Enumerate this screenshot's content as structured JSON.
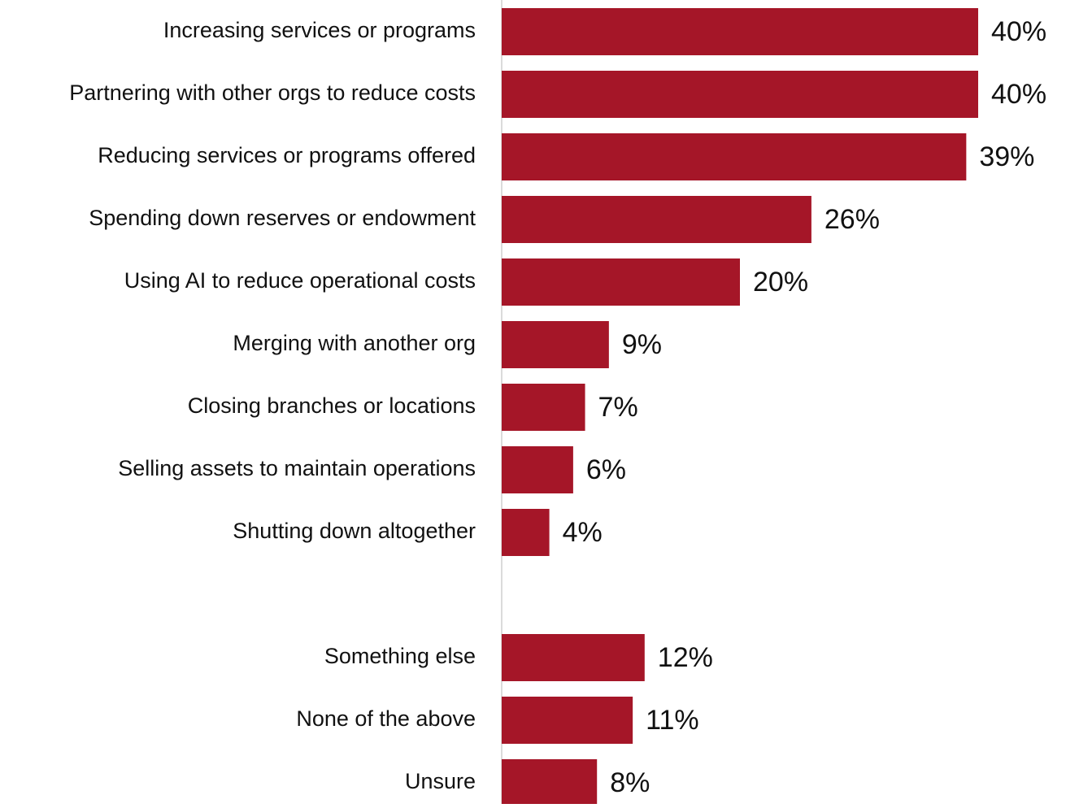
{
  "chart_data": {
    "type": "bar",
    "orientation": "horizontal",
    "title": "",
    "xlabel": "",
    "ylabel": "",
    "xlim": [
      0,
      40
    ],
    "grid": false,
    "legend": "none",
    "value_suffix": "%",
    "colors": {
      "bar": "#A51628",
      "axis": "#CFCFCF",
      "text": "#111111",
      "background": "#FFFFFF"
    },
    "categories": [
      "Increasing services or programs",
      "Partnering with other orgs to reduce costs",
      "Reducing services or programs offered",
      "Spending down reserves or endowment",
      "Using AI to reduce operational costs",
      "Merging with another org",
      "Closing branches or locations",
      "Selling assets to maintain operations",
      "Shutting down altogether",
      "Something else",
      "None of the above",
      "Unsure"
    ],
    "values": [
      40,
      40,
      39,
      26,
      20,
      9,
      7,
      6,
      4,
      12,
      11,
      8
    ],
    "value_labels": [
      "40%",
      "40%",
      "39%",
      "26%",
      "20%",
      "9%",
      "7%",
      "6%",
      "4%",
      "12%",
      "11%",
      "8%"
    ]
  }
}
